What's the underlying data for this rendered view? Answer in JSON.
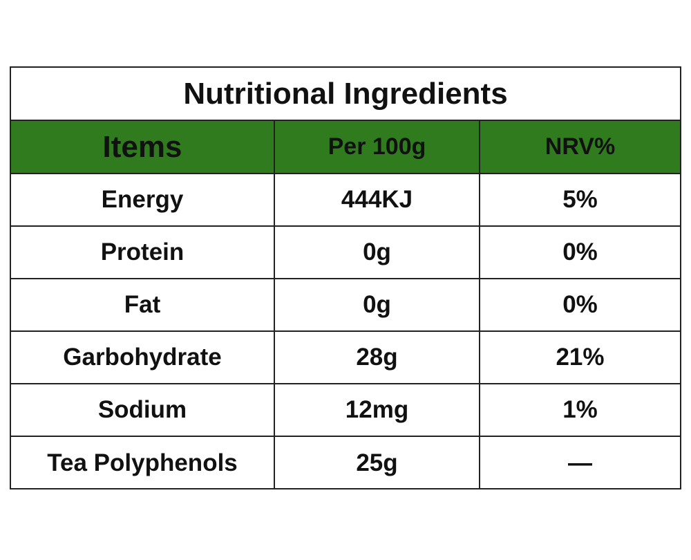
{
  "table": {
    "title": "Nutritional Ingredients",
    "header": [
      "Items",
      "Per 100g",
      "NRV%"
    ],
    "rows": [
      [
        "Energy",
        "444KJ",
        "5%"
      ],
      [
        "Protein",
        "0g",
        "0%"
      ],
      [
        "Fat",
        "0g",
        "0%"
      ],
      [
        "Garbohydrate",
        "28g",
        "21%"
      ],
      [
        "Sodium",
        "12mg",
        "1%"
      ],
      [
        "Tea Polyphenols",
        "25g",
        "—"
      ]
    ]
  }
}
